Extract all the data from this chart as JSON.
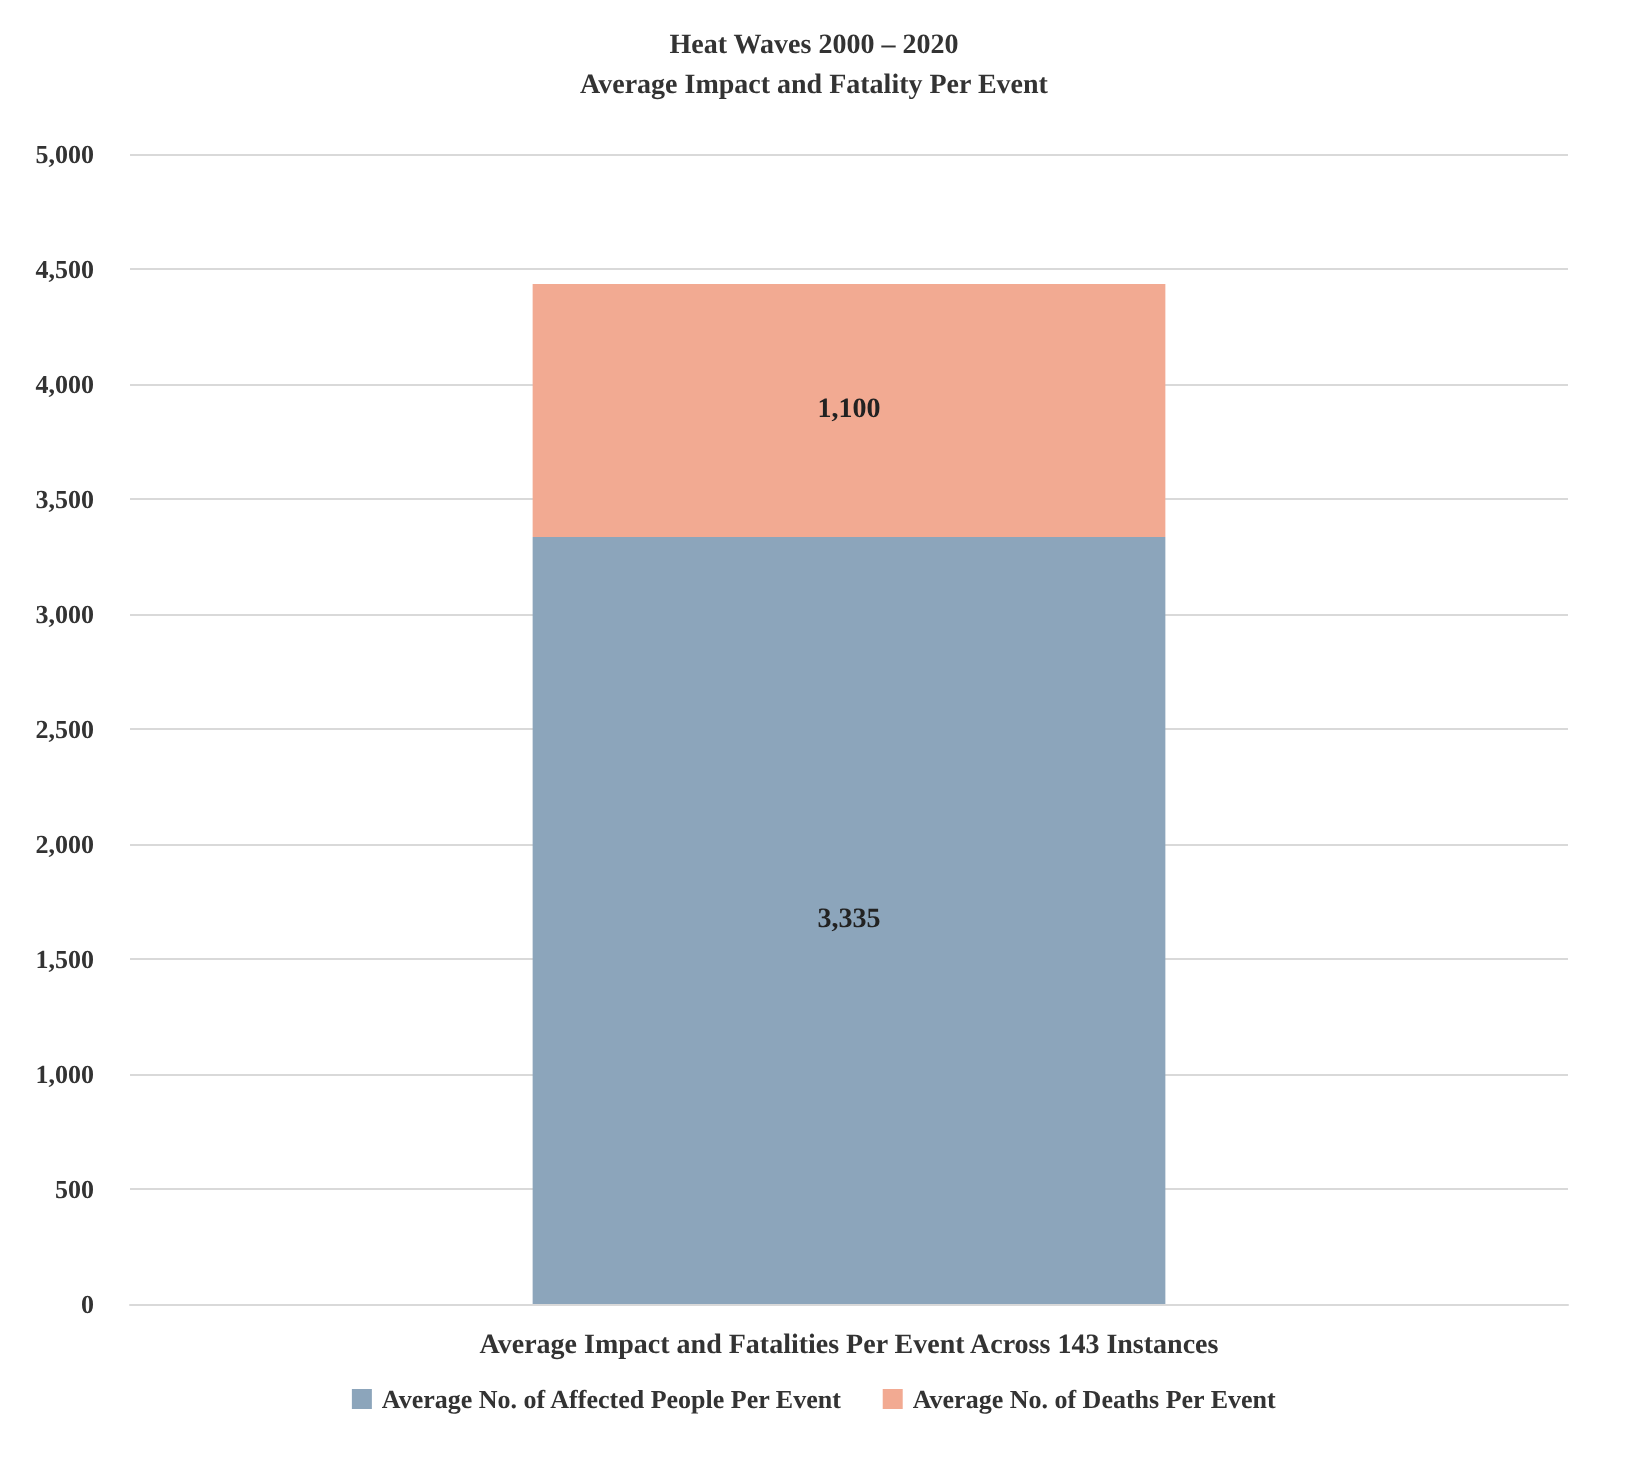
{
  "chart_data": {
    "type": "bar",
    "title": "Heat Waves 2000 – 2020\nAverage Impact and Fatality Per Event",
    "categories": [
      "Average Impact and Fatalities Per Event Across 143 Instances"
    ],
    "series": [
      {
        "name": "Average No. of Affected People Per Event",
        "color": "#8ca5bb",
        "values": [
          3335
        ],
        "value_labels": [
          "3,335"
        ]
      },
      {
        "name": "Average No. of Deaths Per Event",
        "color": "#f2aa92",
        "values": [
          1100
        ],
        "value_labels": [
          "1,100"
        ]
      }
    ],
    "stacked": true,
    "ylim": [
      0,
      5000
    ],
    "yticks": [
      {
        "value": 0,
        "label": "0"
      },
      {
        "value": 500,
        "label": "500"
      },
      {
        "value": 1000,
        "label": "1,000"
      },
      {
        "value": 1500,
        "label": "1,500"
      },
      {
        "value": 2000,
        "label": "2,000"
      },
      {
        "value": 2500,
        "label": "2,500"
      },
      {
        "value": 3000,
        "label": "3,000"
      },
      {
        "value": 3500,
        "label": "3,500"
      },
      {
        "value": 4000,
        "label": "4,000"
      },
      {
        "value": 4500,
        "label": "4,500"
      },
      {
        "value": 5000,
        "label": "5,000"
      }
    ],
    "grid": "y",
    "legend": "bottom"
  }
}
